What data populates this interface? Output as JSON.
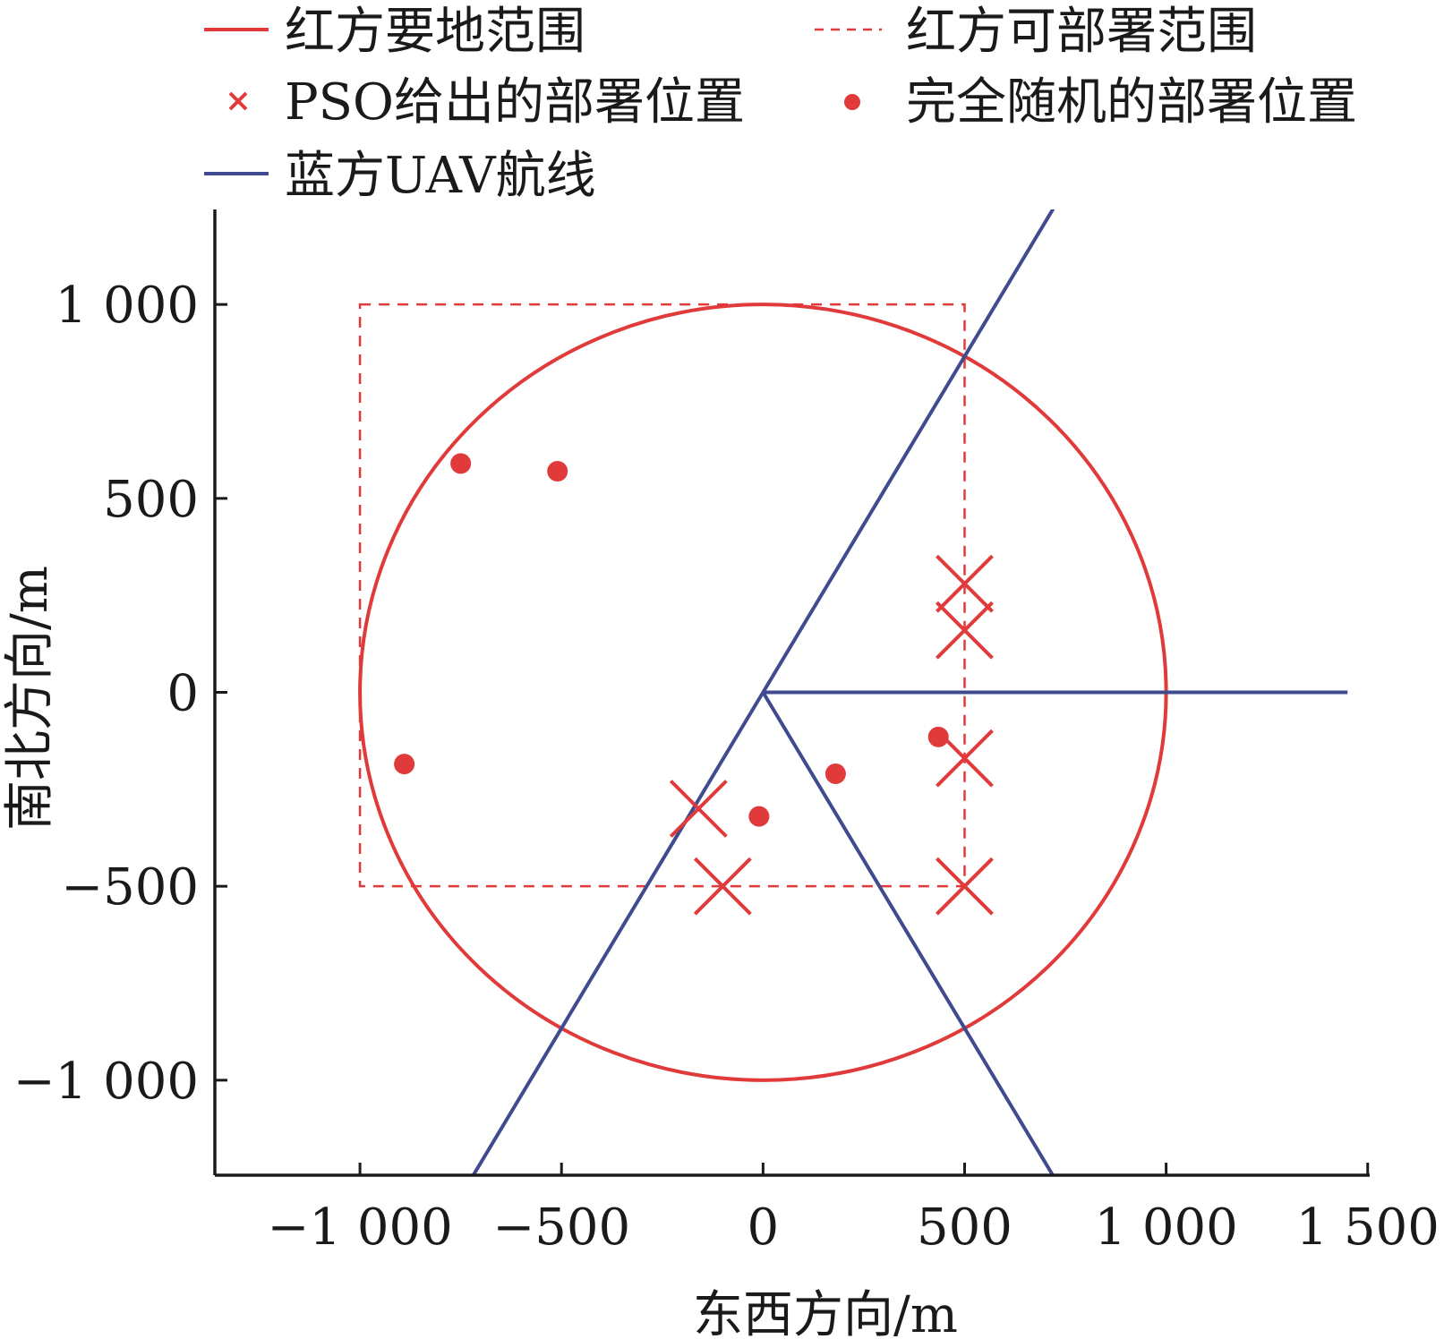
{
  "chart_data": {
    "type": "scatter",
    "xlabel": "东西方向/m",
    "ylabel": "南北方向/m",
    "xlim": [
      -1360,
      1505
    ],
    "ylim": [
      -1245,
      1245
    ],
    "x_ticks": [
      -1000,
      -500,
      0,
      500,
      1000,
      1500
    ],
    "x_tick_labels": [
      "−1 000",
      "−500",
      "0",
      "500",
      "1 000",
      "1 500"
    ],
    "y_ticks": [
      -1000,
      -500,
      0,
      500,
      1000
    ],
    "y_tick_labels": [
      "−1 000",
      "−500",
      "0",
      "500",
      "1 000"
    ],
    "grid": false,
    "legend_position": "top",
    "colors": {
      "red": "#e03a3a",
      "blue": "#3f4a8f",
      "axis": "#1a1a1a"
    },
    "series": [
      {
        "name": "红方要地范围",
        "kind": "circle",
        "style": "solid",
        "color": "#e03a3a",
        "center": [
          0,
          0
        ],
        "radius": 1000
      },
      {
        "name": "红方可部署范围",
        "kind": "rectangle",
        "style": "dashed",
        "color": "#e03a3a",
        "x_range": [
          -1000,
          500
        ],
        "y_range": [
          -500,
          1000
        ]
      },
      {
        "name": "PSO给出的部署位置",
        "kind": "marker-x",
        "color": "#e03a3a",
        "points": [
          [
            500,
            280
          ],
          [
            500,
            160
          ],
          [
            500,
            -170
          ],
          [
            -160,
            -300
          ],
          [
            -100,
            -500
          ],
          [
            500,
            -500
          ]
        ]
      },
      {
        "name": "完全随机的部署位置",
        "kind": "marker-dot",
        "color": "#e03a3a",
        "points": [
          [
            -750,
            590
          ],
          [
            -510,
            570
          ],
          [
            -890,
            -185
          ],
          [
            -10,
            -320
          ],
          [
            180,
            -210
          ],
          [
            435,
            -115
          ]
        ]
      },
      {
        "name": "蓝方UAV航线",
        "kind": "polyline",
        "color": "#3f4a8f",
        "lines": [
          [
            [
              0,
              0
            ],
            [
              720,
              1247
            ]
          ],
          [
            [
              0,
              0
            ],
            [
              1450,
              0
            ]
          ],
          [
            [
              0,
              0
            ],
            [
              -720,
              -1247
            ]
          ],
          [
            [
              0,
              0
            ],
            [
              720,
              -1247
            ]
          ]
        ]
      }
    ]
  }
}
